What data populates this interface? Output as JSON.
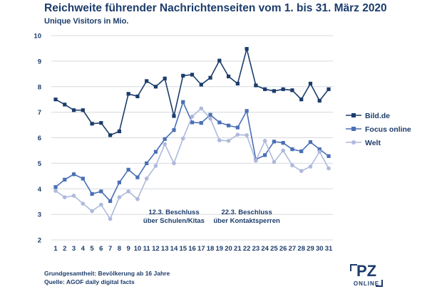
{
  "chart_data": {
    "type": "line",
    "title": "Reichweite führender Nachrichtenseiten vom 1. bis 31. März 2020",
    "ylabel": "Unique Visitors in Mio.",
    "xlabel": "",
    "ylim": [
      2,
      10
    ],
    "yticks": [
      2,
      3,
      4,
      5,
      6,
      7,
      8,
      9,
      10
    ],
    "x": [
      1,
      2,
      3,
      4,
      5,
      6,
      7,
      8,
      9,
      10,
      11,
      12,
      13,
      14,
      15,
      16,
      17,
      18,
      19,
      20,
      21,
      22,
      23,
      24,
      25,
      26,
      27,
      28,
      29,
      30,
      31
    ],
    "grid": true,
    "legend_position": "right",
    "series": [
      {
        "name": "Bild.de",
        "color": "#1c3c6b",
        "values": [
          7.5,
          7.3,
          7.08,
          7.08,
          6.55,
          6.58,
          6.1,
          6.25,
          7.72,
          7.62,
          8.22,
          8.0,
          8.32,
          6.85,
          8.43,
          8.47,
          8.08,
          8.35,
          9.02,
          8.4,
          8.12,
          9.48,
          8.05,
          7.9,
          7.83,
          7.9,
          7.86,
          7.5,
          8.12,
          7.45,
          7.9
        ]
      },
      {
        "name": "Focus online",
        "color": "#4a6fb5",
        "values": [
          4.07,
          4.36,
          4.57,
          4.4,
          3.8,
          3.9,
          3.52,
          4.25,
          4.75,
          4.45,
          5.0,
          5.45,
          5.95,
          6.3,
          7.4,
          6.6,
          6.58,
          6.9,
          6.6,
          6.48,
          6.4,
          7.05,
          5.15,
          5.32,
          5.85,
          5.8,
          5.55,
          5.47,
          5.83,
          5.55,
          5.28
        ]
      },
      {
        "name": "Welt",
        "color": "#aeb9dc",
        "values": [
          3.92,
          3.67,
          3.73,
          3.42,
          3.13,
          3.38,
          2.82,
          3.67,
          3.9,
          3.6,
          4.4,
          4.9,
          5.75,
          5.0,
          5.97,
          6.83,
          7.15,
          6.75,
          5.9,
          5.88,
          6.12,
          6.1,
          5.1,
          5.88,
          5.05,
          5.5,
          4.92,
          4.7,
          4.87,
          5.45,
          4.8
        ]
      }
    ],
    "annotations": [
      {
        "x": 14,
        "lines": [
          "12.3. Beschluss",
          "über Schulen/Kitas"
        ]
      },
      {
        "x": 22,
        "lines": [
          "22.3. Beschluss",
          "über Kontaktsperren"
        ]
      }
    ]
  },
  "footer": {
    "line1": "Grundgesamtheit: Bevölkerung ab 16 Jahre",
    "line2": "Quelle: AGOF daily digital facts"
  },
  "logo": {
    "main": "PZ",
    "sub": "ONLINE"
  }
}
